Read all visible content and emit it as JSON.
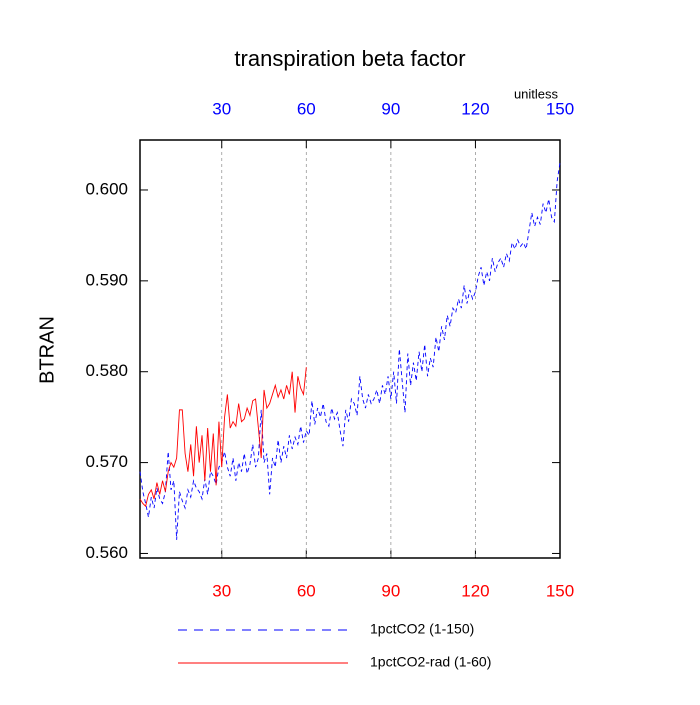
{
  "chart_data": {
    "type": "line",
    "title": "transpiration beta factor",
    "y_label": "BTRAN",
    "annotation": "unitless",
    "xlim": [
      1,
      150
    ],
    "xticks": [
      30,
      60,
      90,
      120,
      150
    ],
    "xtick_color": "#ff0000",
    "x2lim": [
      1,
      150
    ],
    "x2ticks": [
      30,
      60,
      90,
      120,
      150
    ],
    "x2tick_color": "#0000ff",
    "ylim": [
      0.5595,
      0.6055
    ],
    "yticks": [
      {
        "value": 0.56,
        "label": "0.560"
      },
      {
        "value": 0.57,
        "label": "0.570"
      },
      {
        "value": 0.58,
        "label": "0.580"
      },
      {
        "value": 0.59,
        "label": "0.590"
      },
      {
        "value": 0.6,
        "label": "0.600"
      }
    ],
    "grid": true,
    "series": [
      {
        "name": "1pctCO2 (1-150)",
        "color": "#0000ff",
        "dash": true,
        "x": [
          1,
          2,
          3,
          4,
          5,
          6,
          7,
          8,
          9,
          10,
          11,
          12,
          13,
          14,
          15,
          16,
          17,
          18,
          19,
          20,
          21,
          22,
          23,
          24,
          25,
          26,
          27,
          28,
          29,
          30,
          31,
          32,
          33,
          34,
          35,
          36,
          37,
          38,
          39,
          40,
          41,
          42,
          43,
          44,
          45,
          46,
          47,
          48,
          49,
          50,
          51,
          52,
          53,
          54,
          55,
          56,
          57,
          58,
          59,
          60,
          61,
          62,
          63,
          64,
          65,
          66,
          67,
          68,
          69,
          70,
          71,
          72,
          73,
          74,
          75,
          76,
          77,
          78,
          79,
          80,
          81,
          82,
          83,
          84,
          85,
          86,
          87,
          88,
          89,
          90,
          91,
          92,
          93,
          94,
          95,
          96,
          97,
          98,
          99,
          100,
          101,
          102,
          103,
          104,
          105,
          106,
          107,
          108,
          109,
          110,
          111,
          112,
          113,
          114,
          115,
          116,
          117,
          118,
          119,
          120,
          121,
          122,
          123,
          124,
          125,
          126,
          127,
          128,
          129,
          130,
          131,
          132,
          133,
          134,
          135,
          136,
          137,
          138,
          139,
          140,
          141,
          142,
          143,
          144,
          145,
          146,
          147,
          148,
          149,
          150
        ],
        "values": [
          0.569,
          0.5668,
          0.5655,
          0.564,
          0.5662,
          0.565,
          0.5672,
          0.566,
          0.5655,
          0.5668,
          0.5712,
          0.567,
          0.568,
          0.5615,
          0.5668,
          0.5658,
          0.565,
          0.567,
          0.5662,
          0.568,
          0.5672,
          0.5668,
          0.566,
          0.5682,
          0.5665,
          0.569,
          0.5685,
          0.5676,
          0.5695,
          0.57,
          0.5712,
          0.5695,
          0.5685,
          0.5705,
          0.568,
          0.57,
          0.569,
          0.571,
          0.5688,
          0.5698,
          0.572,
          0.5695,
          0.5705,
          0.5758,
          0.57,
          0.571,
          0.5665,
          0.5705,
          0.5695,
          0.5725,
          0.57,
          0.5718,
          0.5705,
          0.573,
          0.5715,
          0.5728,
          0.572,
          0.574,
          0.5722,
          0.5735,
          0.573,
          0.5768,
          0.5742,
          0.576,
          0.575,
          0.5765,
          0.5745,
          0.574,
          0.576,
          0.5748,
          0.5755,
          0.5735,
          0.5718,
          0.5758,
          0.5745,
          0.577,
          0.5765,
          0.5752,
          0.5795,
          0.577,
          0.576,
          0.5775,
          0.5765,
          0.577,
          0.578,
          0.5765,
          0.5785,
          0.5775,
          0.5795,
          0.577,
          0.58,
          0.5765,
          0.5825,
          0.579,
          0.5755,
          0.582,
          0.5785,
          0.581,
          0.579,
          0.5822,
          0.58,
          0.583,
          0.5795,
          0.5815,
          0.5805,
          0.5838,
          0.5822,
          0.585,
          0.5835,
          0.5862,
          0.585,
          0.587,
          0.5865,
          0.588,
          0.587,
          0.5895,
          0.5875,
          0.589,
          0.588,
          0.5888,
          0.5905,
          0.5915,
          0.5895,
          0.591,
          0.59,
          0.5925,
          0.591,
          0.592,
          0.5925,
          0.5915,
          0.593,
          0.5922,
          0.5942,
          0.5935,
          0.5945,
          0.5938,
          0.5942,
          0.5935,
          0.5955,
          0.5975,
          0.596,
          0.597,
          0.5962,
          0.5985,
          0.5975,
          0.599,
          0.597,
          0.5965,
          0.601,
          0.603
        ]
      },
      {
        "name": "1pctCO2-rad (1-60)",
        "color": "#ff0000",
        "dash": false,
        "x": [
          1,
          2,
          3,
          4,
          5,
          6,
          7,
          8,
          9,
          10,
          11,
          12,
          13,
          14,
          15,
          16,
          17,
          18,
          19,
          20,
          21,
          22,
          23,
          24,
          25,
          26,
          27,
          28,
          29,
          30,
          31,
          32,
          33,
          34,
          35,
          36,
          37,
          38,
          39,
          40,
          41,
          42,
          43,
          44,
          45,
          46,
          47,
          48,
          49,
          50,
          51,
          52,
          53,
          54,
          55,
          56,
          57,
          58,
          59,
          60
        ],
        "values": [
          0.566,
          0.5655,
          0.5652,
          0.5665,
          0.567,
          0.566,
          0.5678,
          0.5665,
          0.568,
          0.5668,
          0.569,
          0.57,
          0.5695,
          0.5705,
          0.5758,
          0.5758,
          0.571,
          0.569,
          0.572,
          0.5685,
          0.574,
          0.57,
          0.573,
          0.568,
          0.5738,
          0.569,
          0.5732,
          0.5675,
          0.5745,
          0.5695,
          0.575,
          0.5775,
          0.5738,
          0.5745,
          0.574,
          0.5765,
          0.5745,
          0.5748,
          0.576,
          0.5752,
          0.5768,
          0.577,
          0.5738,
          0.5705,
          0.578,
          0.576,
          0.5765,
          0.5775,
          0.5785,
          0.5772,
          0.578,
          0.577,
          0.5785,
          0.5775,
          0.58,
          0.5755,
          0.5795,
          0.5782,
          0.5775,
          0.5805
        ]
      }
    ]
  }
}
